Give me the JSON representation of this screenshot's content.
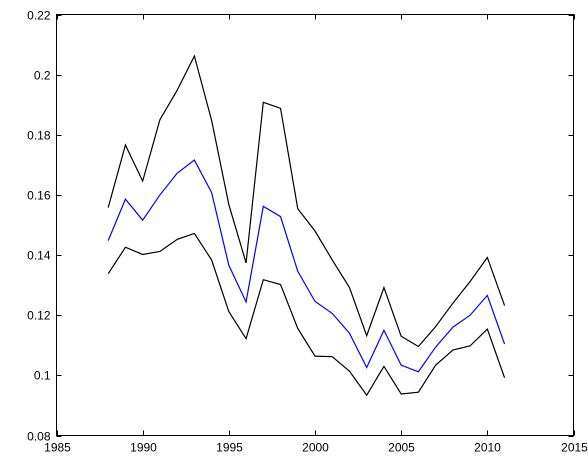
{
  "chart_data": {
    "type": "line",
    "title": "",
    "xlabel": "",
    "ylabel": "",
    "xlim": [
      1985,
      2015
    ],
    "ylim": [
      0.08,
      0.22
    ],
    "xticks": [
      1985,
      1990,
      1995,
      2000,
      2005,
      2010,
      2015
    ],
    "yticks": [
      0.08,
      0.1,
      0.12,
      0.14,
      0.16,
      0.18,
      0.2,
      0.22
    ],
    "xtick_labels": [
      "1985",
      "1990",
      "1995",
      "2000",
      "2005",
      "2010",
      "2015"
    ],
    "ytick_labels": [
      "0.08",
      "0.1",
      "0.12",
      "0.14",
      "0.16",
      "0.18",
      "0.2",
      "0.22"
    ],
    "grid": false,
    "legend": "none",
    "x": [
      1988,
      1989,
      1990,
      1991,
      1992,
      1993,
      1994,
      1995,
      1996,
      1997,
      1998,
      1999,
      2000,
      2001,
      2002,
      2003,
      2004,
      2005,
      2006,
      2007,
      2008,
      2009,
      2010,
      2011
    ],
    "series": [
      {
        "color": "#000000",
        "values": [
          0.1558,
          0.1766,
          0.1646,
          0.185,
          0.1948,
          0.2062,
          0.1848,
          0.1568,
          0.1374,
          0.1908,
          0.1888,
          0.1554,
          0.148,
          0.1384,
          0.1292,
          0.1132,
          0.1292,
          0.113,
          0.1096,
          0.1162,
          0.124,
          0.1312,
          0.1392,
          0.1232
        ]
      },
      {
        "color": "#0000ff",
        "values": [
          0.1448,
          0.1586,
          0.1516,
          0.16,
          0.1672,
          0.1716,
          0.1608,
          0.1366,
          0.1244,
          0.1562,
          0.1528,
          0.1346,
          0.1246,
          0.1206,
          0.114,
          0.1026,
          0.115,
          0.1034,
          0.1012,
          0.1094,
          0.116,
          0.12,
          0.1266,
          0.1104
        ]
      },
      {
        "color": "#000000",
        "values": [
          0.1338,
          0.1426,
          0.1402,
          0.1412,
          0.1452,
          0.1472,
          0.1384,
          0.1212,
          0.1122,
          0.1318,
          0.1302,
          0.1156,
          0.1064,
          0.1062,
          0.1014,
          0.0934,
          0.103,
          0.0938,
          0.0944,
          0.1034,
          0.1084,
          0.1098,
          0.1154,
          0.0992
        ]
      }
    ]
  }
}
